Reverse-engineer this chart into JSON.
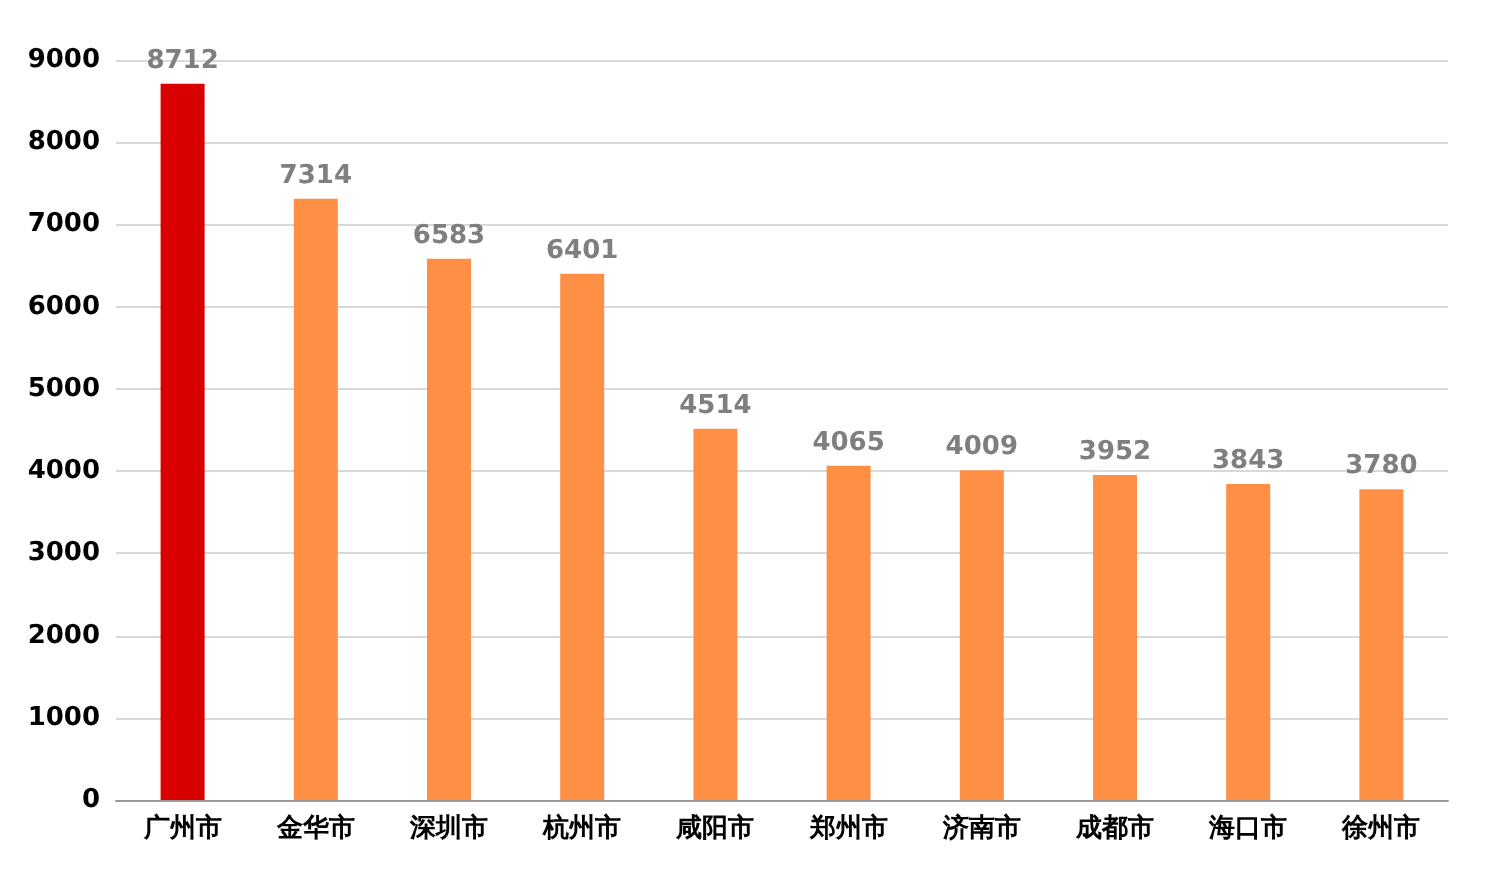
{
  "chart_data": {
    "type": "bar",
    "categories": [
      "广州市",
      "金华市",
      "深圳市",
      "杭州市",
      "咸阳市",
      "郑州市",
      "济南市",
      "成都市",
      "海口市",
      "徐州市"
    ],
    "values": [
      8712,
      7314,
      6583,
      6401,
      4514,
      4065,
      4009,
      3952,
      3843,
      3780
    ],
    "colors": [
      "#d90000",
      "#ff8f45",
      "#ff8f45",
      "#ff8f45",
      "#ff8f45",
      "#ff8f45",
      "#ff8f45",
      "#ff8f45",
      "#ff8f45",
      "#ff8f45"
    ],
    "ylim": [
      0,
      9000
    ],
    "yticks": [
      0,
      1000,
      2000,
      3000,
      4000,
      5000,
      6000,
      7000,
      8000,
      9000
    ],
    "grid": "y",
    "data_labels": true
  }
}
